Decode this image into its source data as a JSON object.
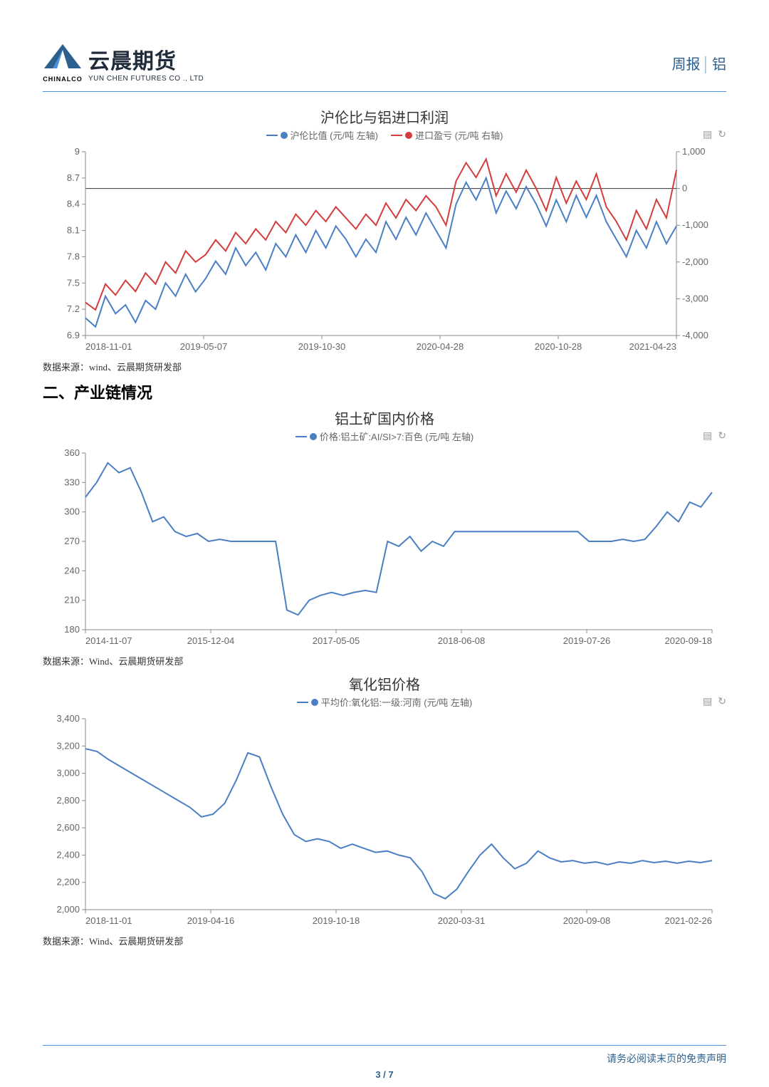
{
  "header": {
    "logo_zh": "云晨期货",
    "logo_en": "YUN CHEN FUTURES CO ., LTD",
    "logo_sub": "CHINALCO",
    "right_a": "周报",
    "right_b": "铝"
  },
  "section_heading": "二、产业链情况",
  "footer": {
    "disclaimer": "请务必阅读末页的免责声明",
    "page": "3 / 7"
  },
  "chart1": {
    "type": "dual-axis-line",
    "title": "沪伦比与铝进口利润",
    "legend_a": "沪伦比值 (元/吨 左轴)",
    "legend_b": "进口盈亏 (元/吨 右轴)",
    "source": "数据来源：wind、云晨期货研发部",
    "color_a": "#4a7fc4",
    "color_b": "#d43d3d",
    "x_labels": [
      "2018-11-01",
      "2019-05-07",
      "2019-10-30",
      "2020-04-28",
      "2020-10-28",
      "2021-04-23"
    ],
    "y_left": {
      "min": 6.9,
      "max": 9,
      "ticks": [
        6.9,
        7.2,
        7.5,
        7.8,
        8.1,
        8.4,
        8.7,
        9
      ]
    },
    "y_right": {
      "min": -4000,
      "max": 1000,
      "ticks": [
        -4000,
        -3000,
        -2000,
        -1000,
        0,
        1000
      ]
    },
    "background_color": "#ffffff",
    "text_color": "#666666",
    "series_a": [
      7.1,
      7.0,
      7.35,
      7.15,
      7.25,
      7.05,
      7.3,
      7.2,
      7.5,
      7.35,
      7.6,
      7.4,
      7.55,
      7.75,
      7.6,
      7.9,
      7.7,
      7.85,
      7.65,
      7.95,
      7.8,
      8.05,
      7.85,
      8.1,
      7.9,
      8.15,
      8.0,
      7.8,
      8.0,
      7.85,
      8.2,
      8.0,
      8.25,
      8.05,
      8.3,
      8.1,
      7.9,
      8.4,
      8.65,
      8.45,
      8.7,
      8.3,
      8.55,
      8.35,
      8.6,
      8.4,
      8.15,
      8.45,
      8.2,
      8.5,
      8.25,
      8.5,
      8.2,
      8.0,
      7.8,
      8.1,
      7.9,
      8.2,
      7.95,
      8.15
    ],
    "series_b": [
      -3100,
      -3300,
      -2600,
      -2900,
      -2500,
      -2800,
      -2300,
      -2600,
      -2000,
      -2300,
      -1700,
      -2000,
      -1800,
      -1400,
      -1700,
      -1200,
      -1500,
      -1100,
      -1400,
      -900,
      -1200,
      -700,
      -1000,
      -600,
      -900,
      -500,
      -800,
      -1100,
      -700,
      -1000,
      -400,
      -800,
      -300,
      -600,
      -200,
      -500,
      -1000,
      200,
      700,
      300,
      800,
      -200,
      400,
      -100,
      500,
      0,
      -600,
      300,
      -400,
      200,
      -300,
      400,
      -500,
      -900,
      -1400,
      -600,
      -1100,
      -300,
      -800,
      500
    ],
    "zero_line_right": 0
  },
  "chart2": {
    "type": "line",
    "title": "铝土矿国内价格",
    "legend_a": "价格:铝土矿:AI/SI>7:百色 (元/吨 左轴)",
    "source": "数据来源：Wind、云晨期货研发部",
    "color_a": "#4a7fc4",
    "x_labels": [
      "2014-11-07",
      "2015-12-04",
      "2017-05-05",
      "2018-06-08",
      "2019-07-26",
      "2020-09-18"
    ],
    "y_left": {
      "min": 180,
      "max": 360,
      "ticks": [
        180,
        210,
        240,
        270,
        300,
        330,
        360
      ]
    },
    "background_color": "#ffffff",
    "text_color": "#666666",
    "series_a": [
      315,
      330,
      350,
      340,
      345,
      320,
      290,
      295,
      280,
      275,
      278,
      270,
      272,
      270,
      270,
      270,
      270,
      270,
      200,
      195,
      210,
      215,
      218,
      215,
      218,
      220,
      218,
      270,
      265,
      275,
      260,
      270,
      265,
      280,
      280,
      280,
      280,
      280,
      280,
      280,
      280,
      280,
      280,
      280,
      280,
      270,
      270,
      270,
      272,
      270,
      272,
      285,
      300,
      290,
      310,
      305,
      320
    ]
  },
  "chart3": {
    "type": "line",
    "title": "氧化铝价格",
    "legend_a": "平均价:氧化铝:一级:河南 (元/吨 左轴)",
    "source": "数据来源：Wind、云晨期货研发部",
    "color_a": "#4a7fc4",
    "x_labels": [
      "2018-11-01",
      "2019-04-16",
      "2019-10-18",
      "2020-03-31",
      "2020-09-08",
      "2021-02-26"
    ],
    "y_left": {
      "min": 2000,
      "max": 3400,
      "ticks": [
        2000,
        2200,
        2400,
        2600,
        2800,
        3000,
        3200,
        3400
      ]
    },
    "background_color": "#ffffff",
    "text_color": "#666666",
    "series_a": [
      3180,
      3160,
      3100,
      3050,
      3000,
      2950,
      2900,
      2850,
      2800,
      2750,
      2680,
      2700,
      2780,
      2950,
      3150,
      3120,
      2900,
      2700,
      2550,
      2500,
      2520,
      2500,
      2450,
      2480,
      2450,
      2420,
      2430,
      2400,
      2380,
      2280,
      2120,
      2080,
      2150,
      2280,
      2400,
      2480,
      2380,
      2300,
      2340,
      2430,
      2380,
      2350,
      2360,
      2340,
      2350,
      2330,
      2350,
      2340,
      2360,
      2345,
      2355,
      2340,
      2355,
      2345,
      2360
    ]
  }
}
